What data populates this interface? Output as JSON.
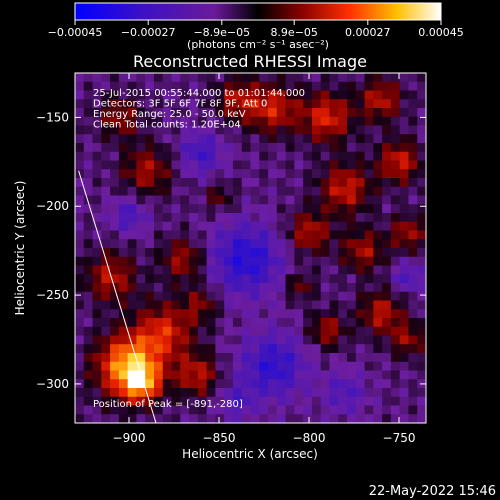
{
  "chart_data": {
    "type": "heatmap",
    "title": "Reconstructed RHESSI Image",
    "xlabel": "Heliocentric X (arcsec)",
    "ylabel": "Heliocentric Y (arcsec)",
    "xlim": [
      -930,
      -735
    ],
    "ylim": [
      -322,
      -125
    ],
    "xticks": [
      -900,
      -850,
      -800,
      -750
    ],
    "xtick_labels": [
      "−900",
      "−850",
      "−800",
      "−750"
    ],
    "yticks": [
      -150,
      -200,
      -250,
      -300
    ],
    "ytick_labels": [
      "−150",
      "−200",
      "−250",
      "−300"
    ],
    "colorbar": {
      "ticks": [
        -0.00045,
        -0.00027,
        -8.9e-05,
        8.9e-05,
        0.00027,
        0.00045
      ],
      "tick_labels": [
        "−0.00045",
        "−0.00027",
        "−8.9e−05",
        "8.9e−05",
        "0.00027",
        "0.00045"
      ],
      "unit_label": "(photons cm⁻² s⁻¹ asec⁻²)",
      "range": [
        -0.00045,
        0.00045
      ],
      "colormap": "blue-purple-red-yellow-white"
    },
    "info_lines": [
      "25-Jul-2015 00:55:44.000 to 01:01:44.000",
      "Detectors: 3F 5F 6F 7F 8F 9F, Att 0",
      "Energy Range: 25.0 - 50.0 keV",
      "Clean    Total counts: 1.20E+04"
    ],
    "peak_label": "Position of Peak = [-891,-280]",
    "peak": {
      "x": -891,
      "y": -280
    },
    "limb_line": {
      "points": [
        [
          -928,
          -180
        ],
        [
          -885,
          -322
        ]
      ]
    },
    "grid_size": [
      40,
      40
    ]
  },
  "footer": {
    "date": "22-May-2022 15:46"
  },
  "colors": {
    "background": "#000000",
    "text": "#ffffff"
  }
}
